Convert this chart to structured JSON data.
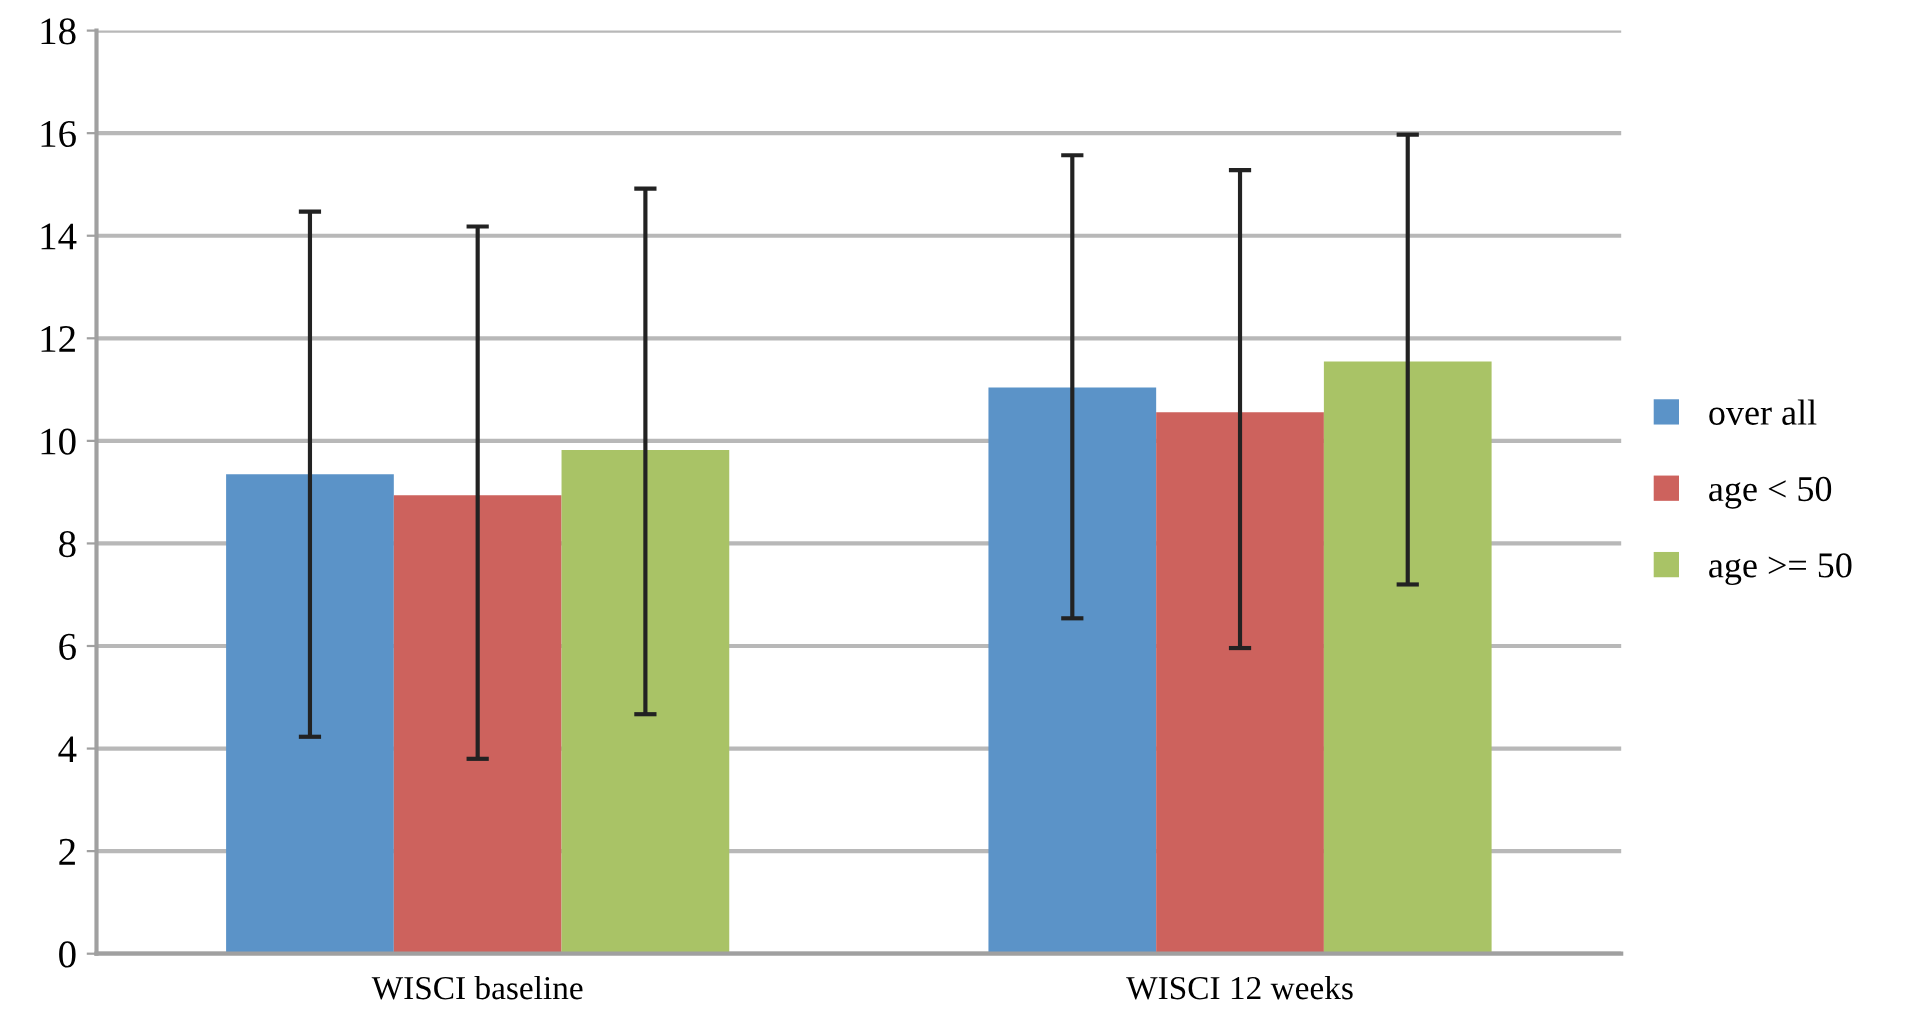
{
  "chart_data": {
    "type": "bar",
    "categories": [
      "WISCI baseline",
      "WISCI 12 weeks"
    ],
    "series": [
      {
        "name": "over all",
        "color": "#5b93c8",
        "values": [
          9.35,
          11.04
        ],
        "errors": [
          [
            4.23,
            14.47
          ],
          [
            6.54,
            15.57
          ]
        ]
      },
      {
        "name": "age < 50",
        "color": "#cd625d",
        "values": [
          8.94,
          10.56
        ],
        "errors": [
          [
            3.8,
            14.18
          ],
          [
            5.96,
            15.28
          ]
        ]
      },
      {
        "name": "age >= 50",
        "color": "#a9c366",
        "values": [
          9.82,
          11.55
        ],
        "errors": [
          [
            4.67,
            14.92
          ],
          [
            7.2,
            15.97
          ]
        ]
      }
    ],
    "ylim": [
      0,
      18
    ],
    "yticks": [
      0,
      2,
      4,
      6,
      8,
      10,
      12,
      14,
      16,
      18
    ],
    "grid": "y",
    "legend": "right"
  }
}
